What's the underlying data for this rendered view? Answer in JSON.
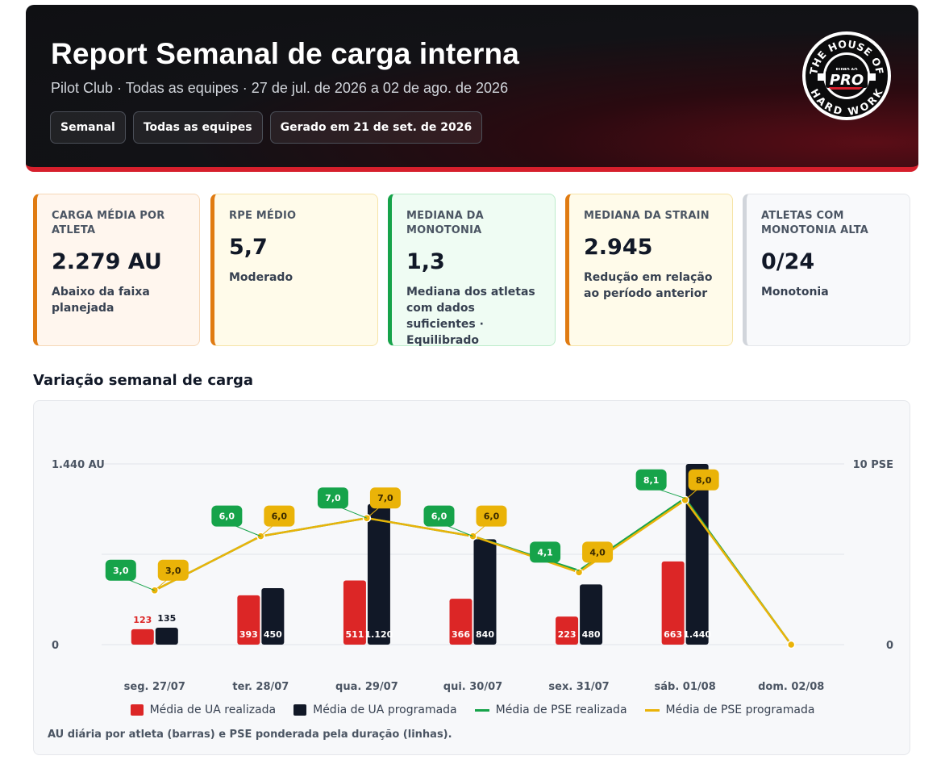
{
  "header": {
    "title": "Report Semanal de carga interna",
    "subtitle": "Pilot Club · Todas as equipes · 27 de jul. de 2026 a 02 de ago. de 2026",
    "chips": [
      "Semanal",
      "Todas as equipes",
      "Gerado em 21 de set. de 2026"
    ],
    "logo": {
      "top_text": "THE HOUSE OF",
      "small_text": "RUMO AO",
      "brand_text": "PRO",
      "bottom_text": "HARD WORK"
    }
  },
  "kpis": [
    {
      "label": "CARGA MÉDIA POR ATLETA",
      "value": "2.279 AU",
      "note": "Abaixo da faixa planejada",
      "accent": "#e07b12",
      "bg": "#fff6ee",
      "border": "#f6d8b8"
    },
    {
      "label": "RPE MÉDIO",
      "value": "5,7",
      "note": "Moderado",
      "accent": "#e07b12",
      "bg": "#fffbea",
      "border": "#f6e4a8"
    },
    {
      "label": "MEDIANA DA MONOTONIA",
      "value": "1,3",
      "note": "Mediana dos atletas com dados suficientes · Equilibrado",
      "accent": "#16a34a",
      "bg": "#effcf3",
      "border": "#bdeccb"
    },
    {
      "label": "MEDIANA DA STRAIN",
      "value": "2.945",
      "note": "Redução em relação ao período anterior",
      "accent": "#e07b12",
      "bg": "#fffbea",
      "border": "#f6e4a8"
    },
    {
      "label": "ATLETAS COM MONOTONIA ALTA",
      "value": "0/24",
      "note": "Monotonia",
      "accent": "#d1d5db",
      "bg": "#f8f9fb",
      "border": "#e5e7eb"
    }
  ],
  "section_title": "Variação semanal de carga",
  "chart_data": {
    "type": "bar",
    "categories": [
      "seg. 27/07",
      "ter. 28/07",
      "qua. 29/07",
      "qui. 30/07",
      "sex. 31/07",
      "sáb. 01/08",
      "dom. 02/08"
    ],
    "series": [
      {
        "name": "Média de UA realizada",
        "kind": "bar",
        "axis": "left",
        "color": "#dc2626",
        "values": [
          123,
          393,
          511,
          366,
          223,
          663,
          null
        ],
        "labels": [
          "123",
          "393",
          "511",
          "366",
          "223",
          "663",
          ""
        ]
      },
      {
        "name": "Média de UA programada",
        "kind": "bar",
        "axis": "left",
        "color": "#111827",
        "values": [
          135,
          450,
          1120,
          840,
          480,
          1440,
          null
        ],
        "labels": [
          "135",
          "450",
          "1.120",
          "840",
          "480",
          "1.440",
          ""
        ]
      },
      {
        "name": "Média de PSE realizada",
        "kind": "line",
        "axis": "right",
        "color": "#16a34a",
        "values": [
          3.0,
          6.0,
          7.0,
          6.0,
          4.1,
          8.1,
          0
        ],
        "labels": [
          "3,0",
          "6,0",
          "7,0",
          "6,0",
          "4,1",
          "8,1",
          ""
        ]
      },
      {
        "name": "Média de PSE programada",
        "kind": "line",
        "axis": "right",
        "color": "#eab308",
        "values": [
          3.0,
          6.0,
          7.0,
          6.0,
          4.0,
          8.0,
          0
        ],
        "labels": [
          "3,0",
          "6,0",
          "7,0",
          "6,0",
          "4,0",
          "8,0",
          ""
        ]
      }
    ],
    "y_left": {
      "ylim": [
        0,
        1440
      ],
      "tick_labels": [
        "0",
        "1.440 AU"
      ]
    },
    "y_right": {
      "ylim": [
        0,
        10
      ],
      "tick_labels": [
        "0",
        "10 PSE"
      ]
    },
    "grid": true,
    "legend": "bottom",
    "note": "AU diária por atleta (barras) e PSE ponderada pela duração (linhas)."
  }
}
